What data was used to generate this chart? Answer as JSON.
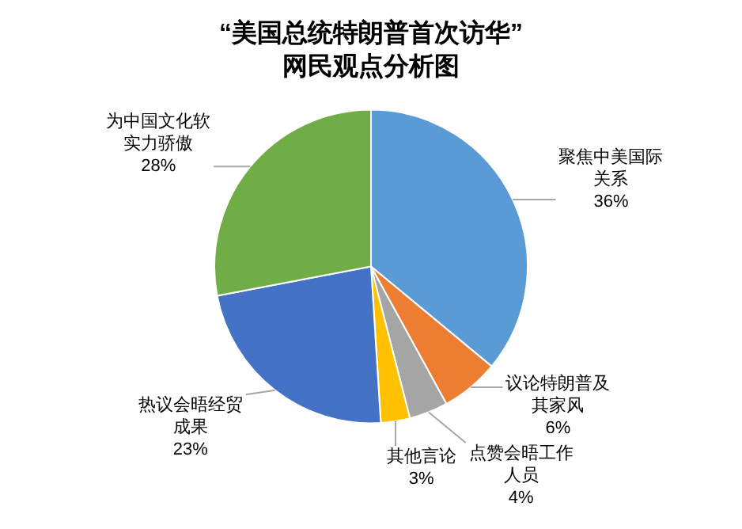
{
  "chart_data": {
    "type": "pie",
    "title": "“美国总统特朗普首次访华”",
    "subtitle": "网民观点分析图",
    "categories": [
      "聚焦中美国际关系",
      "议论特朗普及其家风",
      "点赞会晤工作人员",
      "其他言论",
      "热议会晤经贸成果",
      "为中国文化软实力骄傲"
    ],
    "values": [
      36,
      6,
      4,
      3,
      23,
      28
    ],
    "value_labels": [
      "36%",
      "6%",
      "4%",
      "3%",
      "23%",
      "28%"
    ],
    "colors": [
      "#5b9bd5",
      "#ed7d31",
      "#a5a5a5",
      "#ffc000",
      "#4472c4",
      "#70ad47"
    ],
    "legend": false
  }
}
